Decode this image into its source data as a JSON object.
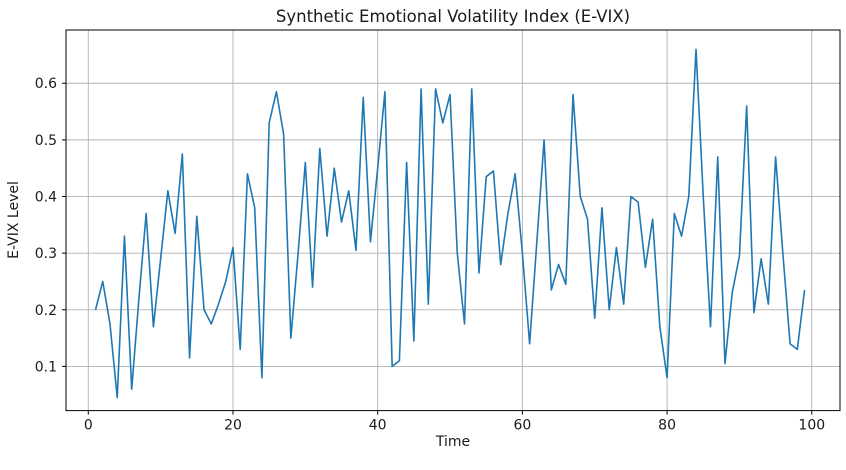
{
  "chart_data": {
    "type": "line",
    "title": "Synthetic Emotional Volatility Index (E-VIX)",
    "xlabel": "Time",
    "ylabel": "E-VIX Level",
    "x_start": 1,
    "x_step": 1,
    "series": [
      {
        "name": "E-VIX",
        "color": "#1f77b4",
        "values": [
          0.2,
          0.25,
          0.175,
          0.045,
          0.33,
          0.06,
          0.22,
          0.37,
          0.17,
          0.29,
          0.41,
          0.335,
          0.475,
          0.115,
          0.365,
          0.2,
          0.175,
          0.21,
          0.25,
          0.31,
          0.13,
          0.44,
          0.38,
          0.08,
          0.53,
          0.585,
          0.51,
          0.15,
          0.3,
          0.46,
          0.24,
          0.485,
          0.33,
          0.45,
          0.355,
          0.41,
          0.305,
          0.575,
          0.32,
          0.45,
          0.585,
          0.1,
          0.11,
          0.46,
          0.145,
          0.59,
          0.21,
          0.59,
          0.53,
          0.58,
          0.3,
          0.175,
          0.59,
          0.265,
          0.435,
          0.445,
          0.28,
          0.37,
          0.44,
          0.3,
          0.14,
          0.32,
          0.5,
          0.235,
          0.28,
          0.245,
          0.58,
          0.4,
          0.36,
          0.185,
          0.38,
          0.2,
          0.31,
          0.21,
          0.4,
          0.39,
          0.275,
          0.36,
          0.17,
          0.08,
          0.37,
          0.33,
          0.4,
          0.66,
          0.4,
          0.17,
          0.47,
          0.105,
          0.23,
          0.295,
          0.56,
          0.195,
          0.29,
          0.21,
          0.47,
          0.3,
          0.14,
          0.13,
          0.235
        ]
      }
    ],
    "x_ticks": [
      0,
      20,
      40,
      60,
      80,
      100
    ],
    "y_ticks": [
      0.1,
      0.2,
      0.3,
      0.4,
      0.5,
      0.6
    ],
    "xlim": [
      -3.08,
      103.9
    ],
    "ylim": [
      0.022,
      0.694
    ],
    "grid": true,
    "grid_color": "#b2b2b2",
    "background_color": "#ffffff",
    "spine_color": "#000000",
    "legend": "none"
  }
}
